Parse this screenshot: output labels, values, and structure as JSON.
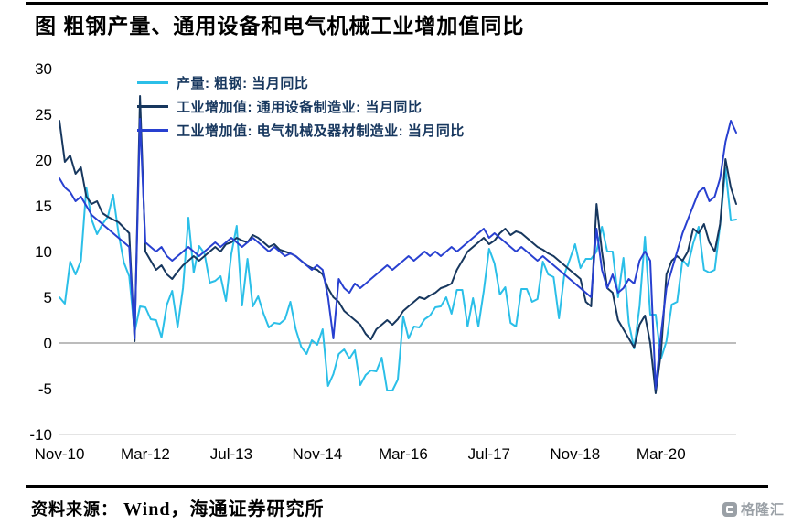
{
  "title": "图  粗钢产量、通用设备和电气机械工业增加值同比",
  "source": {
    "prefix": "资料来源：",
    "body": "Wind，海通证券研究所"
  },
  "logo": {
    "text": "格隆汇"
  },
  "chart_data": {
    "type": "line",
    "title": "图 粗钢产量、通用设备和电气机械工业增加值同比",
    "unit": "%",
    "x_start": "2010-11",
    "x_end": "2021-05",
    "freq": "monthly",
    "x_tick_labels": [
      "Nov-10",
      "Mar-12",
      "Jul-13",
      "Nov-14",
      "Mar-16",
      "Jul-17",
      "Nov-18",
      "Mar-20"
    ],
    "x_tick_indices": [
      0,
      16,
      32,
      48,
      64,
      80,
      96,
      112
    ],
    "ylim": [
      -10,
      30
    ],
    "y_ticks": [
      30,
      25,
      20,
      15,
      10,
      5,
      0,
      -5,
      -10
    ],
    "grid": "zero-line-only",
    "legend_position": "top-left-inside",
    "series": [
      {
        "name": "产量: 粗钢: 当月同比",
        "color": "#2BBFE8",
        "values": [
          5.0,
          4.3,
          8.9,
          7.5,
          9.0,
          17.0,
          13.5,
          11.9,
          13.0,
          13.8,
          16.2,
          12.0,
          8.8,
          7.3,
          1.2,
          4.0,
          3.9,
          2.6,
          2.5,
          0.6,
          4.2,
          5.7,
          1.7,
          6.0,
          13.7,
          7.7,
          10.6,
          9.8,
          6.6,
          6.8,
          7.3,
          4.6,
          9.7,
          12.8,
          4.1,
          9.2,
          4.0,
          5.1,
          3.2,
          1.7,
          2.2,
          2.1,
          2.6,
          4.5,
          1.5,
          -0.4,
          -1.2,
          0.3,
          -0.2,
          1.5,
          -4.7,
          -3.4,
          -1.2,
          -0.7,
          -1.7,
          -0.8,
          -4.6,
          -3.5,
          -3.0,
          -3.1,
          -1.6,
          -5.2,
          -5.2,
          -4.0,
          2.9,
          0.5,
          1.8,
          1.7,
          2.6,
          3.0,
          3.9,
          4.0,
          5.0,
          3.2,
          5.8,
          5.8,
          1.8,
          4.9,
          1.8,
          5.7,
          10.3,
          8.7,
          5.3,
          6.1,
          2.2,
          1.8,
          5.9,
          5.9,
          4.5,
          4.8,
          8.9,
          7.5,
          7.2,
          2.7,
          7.5,
          9.1,
          10.8,
          8.2,
          9.2,
          9.2,
          10.0,
          12.7,
          10.0,
          10.0,
          5.0,
          9.3,
          2.2,
          -0.6,
          4.0,
          11.6,
          3.1,
          3.1,
          -1.7,
          0.2,
          4.2,
          4.5,
          9.1,
          8.4,
          10.9,
          12.7,
          8.0,
          7.7,
          8.0,
          12.9,
          19.1,
          13.4,
          13.5
        ]
      },
      {
        "name": "工业增加值: 通用设备制造业: 当月同比",
        "color": "#17375E",
        "values": [
          24.3,
          19.8,
          20.5,
          18.5,
          19.2,
          16.0,
          15.2,
          15.5,
          14.2,
          13.8,
          13.5,
          13.2,
          12.6,
          12.0,
          0.2,
          27.0,
          10.0,
          9.0,
          8.0,
          8.5,
          7.5,
          7.0,
          7.8,
          8.5,
          9.0,
          9.5,
          9.0,
          9.5,
          10.0,
          10.5,
          10.0,
          10.8,
          11.0,
          11.5,
          11.2,
          11.0,
          11.8,
          11.5,
          11.0,
          10.5,
          10.8,
          10.2,
          10.0,
          9.8,
          9.5,
          9.0,
          8.5,
          8.2,
          8.0,
          7.5,
          6.0,
          5.0,
          4.5,
          3.5,
          3.0,
          2.5,
          2.0,
          1.0,
          0.4,
          1.5,
          2.0,
          2.5,
          2.0,
          2.6,
          3.5,
          4.0,
          4.5,
          5.0,
          4.8,
          5.2,
          5.5,
          6.0,
          6.2,
          6.5,
          8.0,
          9.0,
          10.0,
          10.5,
          11.0,
          11.5,
          10.8,
          11.2,
          12.0,
          12.5,
          11.8,
          12.2,
          12.0,
          11.5,
          11.0,
          10.5,
          10.2,
          9.8,
          9.5,
          9.0,
          8.5,
          8.0,
          7.5,
          7.0,
          4.5,
          4.0,
          15.2,
          10.0,
          6.0,
          5.5,
          2.5,
          1.5,
          0.5,
          -0.5,
          2.0,
          3.0,
          0.0,
          -5.5,
          -1.0,
          7.5,
          9.0,
          9.5,
          9.0,
          10.0,
          12.5,
          12.0,
          13.0,
          11.0,
          10.0,
          13.0,
          20.1,
          17.0,
          15.2
        ]
      },
      {
        "name": "工业增加值: 电气机械及器材制造业: 当月同比",
        "color": "#2840D0",
        "values": [
          18.0,
          17.0,
          16.5,
          15.5,
          16.0,
          15.0,
          14.0,
          13.5,
          13.0,
          12.5,
          12.0,
          11.5,
          11.0,
          10.5,
          0.5,
          24.5,
          11.0,
          10.5,
          10.0,
          10.5,
          9.5,
          9.0,
          9.5,
          10.0,
          10.5,
          10.0,
          9.5,
          10.0,
          10.5,
          11.0,
          10.5,
          11.0,
          11.5,
          11.0,
          10.5,
          11.0,
          11.5,
          11.0,
          10.5,
          10.0,
          10.5,
          10.0,
          9.5,
          9.8,
          9.5,
          9.0,
          8.5,
          8.0,
          8.5,
          8.0,
          5.0,
          0.5,
          7.0,
          6.0,
          5.5,
          6.5,
          6.0,
          6.5,
          7.0,
          7.5,
          8.0,
          8.5,
          8.0,
          8.5,
          9.0,
          9.5,
          9.0,
          9.5,
          10.0,
          9.5,
          10.0,
          9.5,
          10.0,
          10.5,
          10.0,
          10.5,
          11.0,
          11.5,
          12.0,
          12.5,
          11.5,
          12.0,
          11.5,
          11.0,
          10.5,
          10.0,
          10.5,
          10.0,
          9.5,
          9.0,
          9.5,
          9.0,
          8.5,
          8.0,
          7.5,
          7.0,
          6.5,
          6.0,
          5.5,
          5.0,
          12.5,
          8.0,
          6.0,
          7.5,
          5.5,
          6.0,
          7.0,
          6.5,
          9.0,
          10.0,
          9.0,
          -5.0,
          1.0,
          6.0,
          8.0,
          10.0,
          12.0,
          13.5,
          15.0,
          16.5,
          17.0,
          15.5,
          16.0,
          18.0,
          22.0,
          24.3,
          23.0
        ]
      }
    ]
  }
}
